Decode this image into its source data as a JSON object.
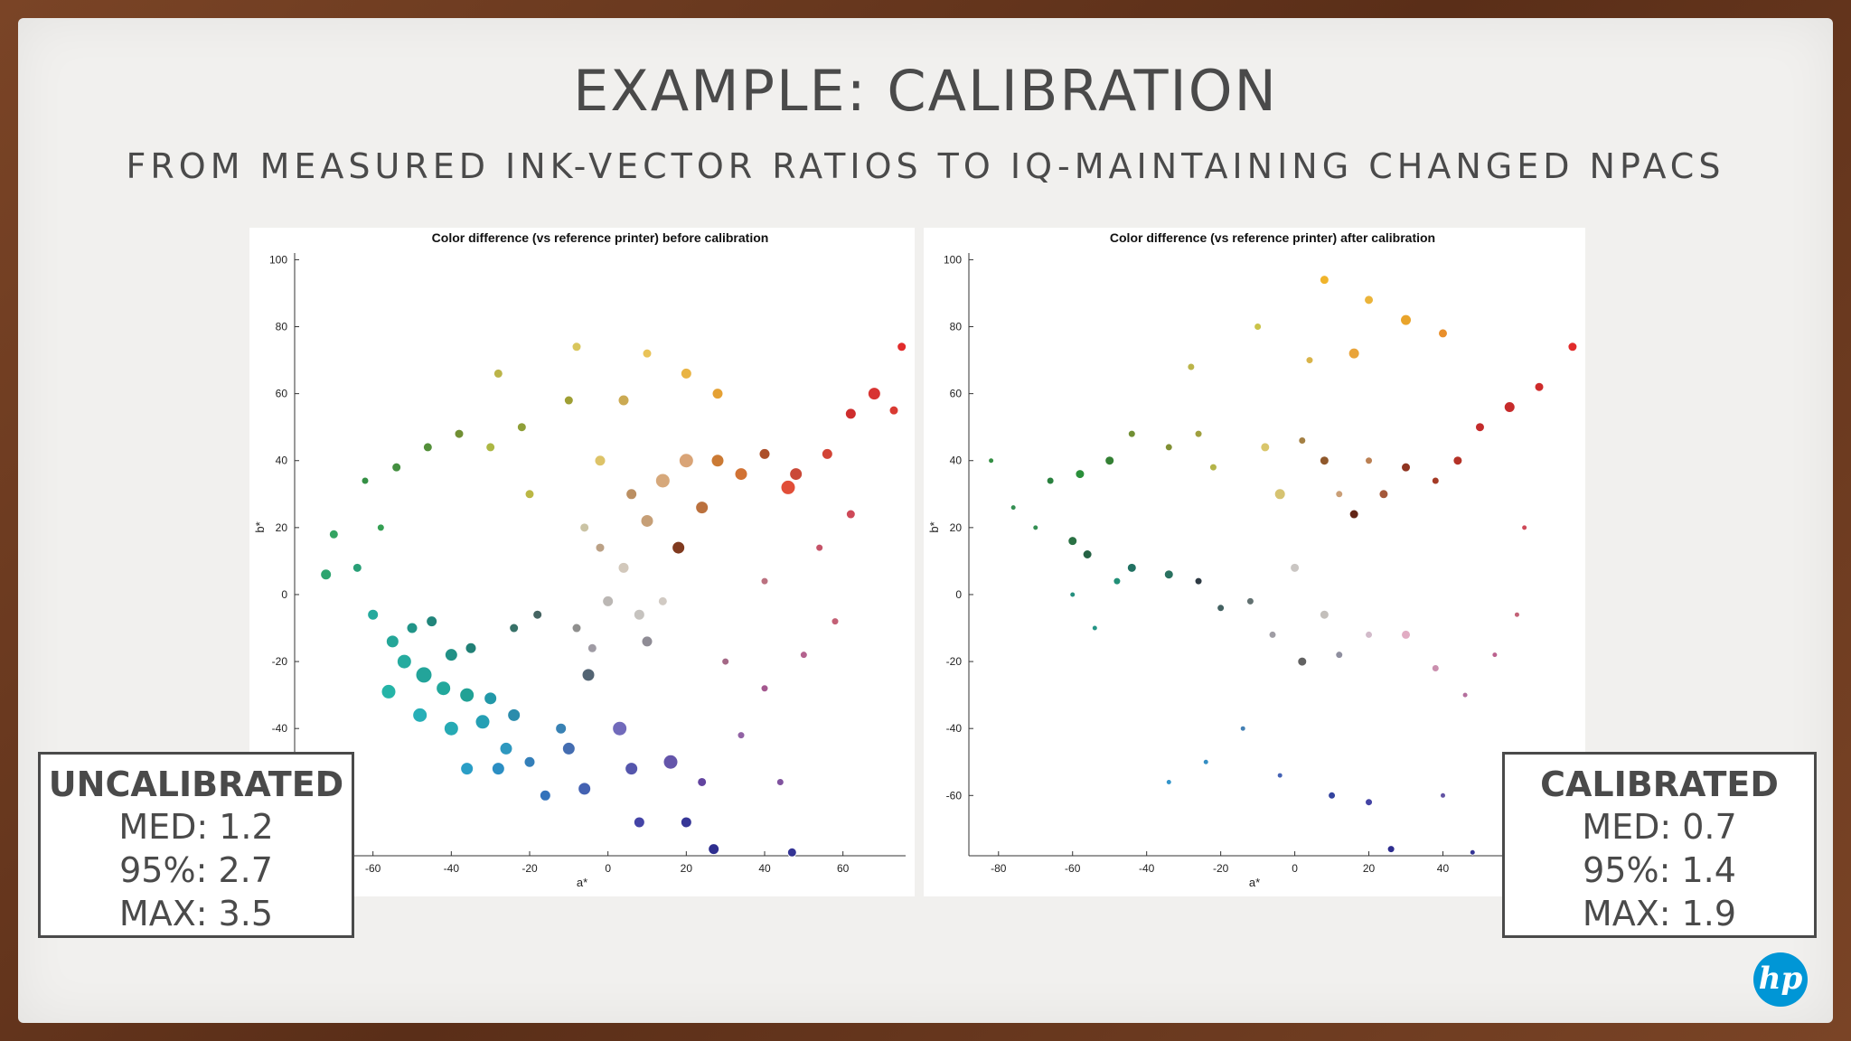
{
  "slide": {
    "title": "EXAMPLE: CALIBRATION",
    "subtitle": "FROM MEASURED INK-VECTOR RATIOS TO IQ-MAINTAINING CHANGED NPACS",
    "logo_text": "hp"
  },
  "stats": {
    "uncalibrated": {
      "label": "UNCALIBRATED",
      "med": "MED: 1.2",
      "p95": "95%: 2.7",
      "max": "MAX: 3.5"
    },
    "calibrated": {
      "label": "CALIBRATED",
      "med": "MED: 0.7",
      "p95": "95%: 1.4",
      "max": "MAX: 1.9"
    }
  },
  "chart_data": [
    {
      "type": "scatter",
      "title": "Color difference (vs reference printer) before calibration",
      "xlabel": "a*",
      "ylabel": "b*",
      "xlim": [
        -80,
        76
      ],
      "ylim": [
        -78,
        102
      ],
      "xticks": [
        -60,
        -40,
        -20,
        0,
        20,
        40,
        60
      ],
      "yticks": [
        100,
        80,
        60,
        40,
        20,
        0,
        -20,
        -40
      ],
      "grid": false,
      "points": [
        {
          "x": -60,
          "y": -6,
          "s": 6,
          "c": "#1aa698"
        },
        {
          "x": -55,
          "y": -14,
          "s": 7,
          "c": "#19a293"
        },
        {
          "x": -50,
          "y": -10,
          "s": 6,
          "c": "#168f82"
        },
        {
          "x": -45,
          "y": -8,
          "s": 6,
          "c": "#167f74"
        },
        {
          "x": -52,
          "y": -20,
          "s": 8,
          "c": "#1ba79a"
        },
        {
          "x": -47,
          "y": -24,
          "s": 9,
          "c": "#18a095"
        },
        {
          "x": -40,
          "y": -18,
          "s": 7,
          "c": "#178c80"
        },
        {
          "x": -35,
          "y": -16,
          "s": 6,
          "c": "#167a6f"
        },
        {
          "x": -56,
          "y": -29,
          "s": 8,
          "c": "#1ab0a3"
        },
        {
          "x": -42,
          "y": -28,
          "s": 8,
          "c": "#17a497"
        },
        {
          "x": -36,
          "y": -30,
          "s": 8,
          "c": "#169c90"
        },
        {
          "x": -30,
          "y": -31,
          "s": 7,
          "c": "#1793a4"
        },
        {
          "x": -48,
          "y": -36,
          "s": 8,
          "c": "#1cabb4"
        },
        {
          "x": -40,
          "y": -40,
          "s": 8,
          "c": "#1ba6b0"
        },
        {
          "x": -32,
          "y": -38,
          "s": 8,
          "c": "#1a9ab0"
        },
        {
          "x": -24,
          "y": -36,
          "s": 7,
          "c": "#2086a8"
        },
        {
          "x": -36,
          "y": -52,
          "s": 7,
          "c": "#1f99c4"
        },
        {
          "x": -28,
          "y": -52,
          "s": 7,
          "c": "#2088c0"
        },
        {
          "x": -20,
          "y": -50,
          "s": 6,
          "c": "#2a79b6"
        },
        {
          "x": -10,
          "y": -46,
          "s": 7,
          "c": "#3a66ad"
        },
        {
          "x": -16,
          "y": -60,
          "s": 6,
          "c": "#2a6cb8"
        },
        {
          "x": -6,
          "y": -58,
          "s": 7,
          "c": "#3b5aae"
        },
        {
          "x": 6,
          "y": -52,
          "s": 7,
          "c": "#4c4ea8"
        },
        {
          "x": 16,
          "y": -50,
          "s": 8,
          "c": "#5c4ca6"
        },
        {
          "x": 8,
          "y": -68,
          "s": 6,
          "c": "#3a3aa2"
        },
        {
          "x": 20,
          "y": -68,
          "s": 6,
          "c": "#2c2c92"
        },
        {
          "x": 27,
          "y": -76,
          "s": 6,
          "c": "#23238a"
        },
        {
          "x": 47,
          "y": -77,
          "s": 5,
          "c": "#2a2a90"
        },
        {
          "x": 3,
          "y": -40,
          "s": 8,
          "c": "#6a63b8"
        },
        {
          "x": -5,
          "y": -24,
          "s": 7,
          "c": "#4a5c6c"
        },
        {
          "x": -18,
          "y": -6,
          "s": 5,
          "c": "#3c5c5a"
        },
        {
          "x": -24,
          "y": -10,
          "s": 5,
          "c": "#2d6a60"
        },
        {
          "x": -8,
          "y": -10,
          "s": 5,
          "c": "#8a8a88"
        },
        {
          "x": 0,
          "y": -2,
          "s": 6,
          "c": "#b8b4b0"
        },
        {
          "x": 8,
          "y": -6,
          "s": 6,
          "c": "#c4c0bc"
        },
        {
          "x": -4,
          "y": -16,
          "s": 5,
          "c": "#9a96a0"
        },
        {
          "x": 10,
          "y": -14,
          "s": 6,
          "c": "#8a8690"
        },
        {
          "x": 14,
          "y": -2,
          "s": 5,
          "c": "#cfc8c0"
        },
        {
          "x": 4,
          "y": 8,
          "s": 6,
          "c": "#d0c6b8"
        },
        {
          "x": -2,
          "y": 14,
          "s": 5,
          "c": "#b89c80"
        },
        {
          "x": 6,
          "y": 30,
          "s": 6,
          "c": "#b88a5a"
        },
        {
          "x": 10,
          "y": 22,
          "s": 7,
          "c": "#c49a70"
        },
        {
          "x": 14,
          "y": 34,
          "s": 8,
          "c": "#d4a474"
        },
        {
          "x": 18,
          "y": 14,
          "s": 7,
          "c": "#7a3014"
        },
        {
          "x": 20,
          "y": 40,
          "s": 8,
          "c": "#d8a070"
        },
        {
          "x": 24,
          "y": 26,
          "s": 7,
          "c": "#b86a34"
        },
        {
          "x": 28,
          "y": 40,
          "s": 7,
          "c": "#c9732a"
        },
        {
          "x": 34,
          "y": 36,
          "s": 7,
          "c": "#cf6b2a"
        },
        {
          "x": 40,
          "y": 42,
          "s": 6,
          "c": "#a8461e"
        },
        {
          "x": 48,
          "y": 36,
          "s": 7,
          "c": "#c8402e"
        },
        {
          "x": 56,
          "y": 42,
          "s": 6,
          "c": "#d03a2c"
        },
        {
          "x": 62,
          "y": 54,
          "s": 6,
          "c": "#cc2222"
        },
        {
          "x": 68,
          "y": 60,
          "s": 7,
          "c": "#d62a28"
        },
        {
          "x": 73,
          "y": 55,
          "s": 5,
          "c": "#d83028"
        },
        {
          "x": 75,
          "y": 74,
          "s": 5,
          "c": "#e02020"
        },
        {
          "x": 46,
          "y": 32,
          "s": 8,
          "c": "#e0452e"
        },
        {
          "x": 28,
          "y": 60,
          "s": 6,
          "c": "#e49c2a"
        },
        {
          "x": 20,
          "y": 66,
          "s": 6,
          "c": "#e8b03a"
        },
        {
          "x": 10,
          "y": 72,
          "s": 5,
          "c": "#e8c050"
        },
        {
          "x": 4,
          "y": 58,
          "s": 6,
          "c": "#c9a64a"
        },
        {
          "x": -10,
          "y": 58,
          "s": 5,
          "c": "#9a9a2a"
        },
        {
          "x": -22,
          "y": 50,
          "s": 5,
          "c": "#8a9a2e"
        },
        {
          "x": -30,
          "y": 44,
          "s": 5,
          "c": "#a8b43a"
        },
        {
          "x": -38,
          "y": 48,
          "s": 5,
          "c": "#6a8a2a"
        },
        {
          "x": -46,
          "y": 44,
          "s": 5,
          "c": "#4a8a30"
        },
        {
          "x": -54,
          "y": 38,
          "s": 5,
          "c": "#3a8a36"
        },
        {
          "x": -62,
          "y": 34,
          "s": 4,
          "c": "#2a8a3a"
        },
        {
          "x": -58,
          "y": 20,
          "s": 4,
          "c": "#2a9a4a"
        },
        {
          "x": -70,
          "y": 18,
          "s": 5,
          "c": "#2aa05a"
        },
        {
          "x": -72,
          "y": 6,
          "s": 6,
          "c": "#22a068"
        },
        {
          "x": -64,
          "y": 8,
          "s": 5,
          "c": "#1e9a70"
        },
        {
          "x": -20,
          "y": 30,
          "s": 5,
          "c": "#b8b43a"
        },
        {
          "x": -28,
          "y": 66,
          "s": 5,
          "c": "#b8b040"
        },
        {
          "x": -8,
          "y": 74,
          "s": 5,
          "c": "#d8c454"
        },
        {
          "x": -2,
          "y": 40,
          "s": 6,
          "c": "#dcc060"
        },
        {
          "x": -6,
          "y": 20,
          "s": 5,
          "c": "#c8c0a0"
        },
        {
          "x": 30,
          "y": -20,
          "s": 4,
          "c": "#a06080"
        },
        {
          "x": 40,
          "y": -28,
          "s": 4,
          "c": "#a0508a"
        },
        {
          "x": 50,
          "y": -18,
          "s": 4,
          "c": "#b05a88"
        },
        {
          "x": 58,
          "y": -8,
          "s": 4,
          "c": "#c0586e"
        },
        {
          "x": 54,
          "y": 14,
          "s": 4,
          "c": "#c24a60"
        },
        {
          "x": 62,
          "y": 24,
          "s": 5,
          "c": "#cc4050"
        },
        {
          "x": 40,
          "y": 4,
          "s": 4,
          "c": "#b86a7a"
        },
        {
          "x": 34,
          "y": -42,
          "s": 4,
          "c": "#8c5aa0"
        },
        {
          "x": 44,
          "y": -56,
          "s": 4,
          "c": "#7a4a9a"
        },
        {
          "x": 24,
          "y": -56,
          "s": 5,
          "c": "#5a3a9a"
        },
        {
          "x": -12,
          "y": -40,
          "s": 6,
          "c": "#2f7cb0"
        },
        {
          "x": -26,
          "y": -46,
          "s": 7,
          "c": "#2393bc"
        }
      ]
    },
    {
      "type": "scatter",
      "title": "Color difference (vs reference printer) after calibration",
      "xlabel": "a*",
      "ylabel": "b*",
      "xlim": [
        -88,
        76
      ],
      "ylim": [
        -78,
        102
      ],
      "xticks": [
        -80,
        -60,
        -40,
        -20,
        0,
        20,
        40
      ],
      "yticks": [
        100,
        80,
        60,
        40,
        20,
        0,
        -20,
        -40,
        -60
      ],
      "grid": false,
      "points": [
        {
          "x": -60,
          "y": 0,
          "s": 3,
          "c": "#1a8a78"
        },
        {
          "x": -54,
          "y": -10,
          "s": 3,
          "c": "#1a9080"
        },
        {
          "x": -48,
          "y": 4,
          "s": 4,
          "c": "#178a70"
        },
        {
          "x": -44,
          "y": 8,
          "s": 5,
          "c": "#166a5a"
        },
        {
          "x": -34,
          "y": 6,
          "s": 5,
          "c": "#1f6a58"
        },
        {
          "x": -26,
          "y": 4,
          "s": 4,
          "c": "#23303a"
        },
        {
          "x": -60,
          "y": 16,
          "s": 5,
          "c": "#1f6a3a"
        },
        {
          "x": -56,
          "y": 12,
          "s": 5,
          "c": "#1a5a3a"
        },
        {
          "x": -70,
          "y": 20,
          "s": 3,
          "c": "#2a8a4a"
        },
        {
          "x": -76,
          "y": 26,
          "s": 3,
          "c": "#2a8a4a"
        },
        {
          "x": -82,
          "y": 40,
          "s": 3,
          "c": "#2a8a3a"
        },
        {
          "x": -66,
          "y": 34,
          "s": 4,
          "c": "#1e7a34"
        },
        {
          "x": -58,
          "y": 36,
          "s": 5,
          "c": "#1f8a30"
        },
        {
          "x": -50,
          "y": 40,
          "s": 5,
          "c": "#2a7a2a"
        },
        {
          "x": -44,
          "y": 48,
          "s": 4,
          "c": "#6a8a2a"
        },
        {
          "x": -34,
          "y": 44,
          "s": 4,
          "c": "#7a8a2a"
        },
        {
          "x": -26,
          "y": 48,
          "s": 4,
          "c": "#9a9a34"
        },
        {
          "x": -22,
          "y": 38,
          "s": 4,
          "c": "#b0b040"
        },
        {
          "x": -8,
          "y": 44,
          "s": 5,
          "c": "#d8c464"
        },
        {
          "x": -4,
          "y": 30,
          "s": 6,
          "c": "#d4c06a"
        },
        {
          "x": 2,
          "y": 46,
          "s": 4,
          "c": "#a07a3a"
        },
        {
          "x": 8,
          "y": 40,
          "s": 5,
          "c": "#8a5020"
        },
        {
          "x": 12,
          "y": 30,
          "s": 4,
          "c": "#c89a70"
        },
        {
          "x": 16,
          "y": 24,
          "s": 5,
          "c": "#5a1a0a"
        },
        {
          "x": 20,
          "y": 40,
          "s": 4,
          "c": "#b87a4a"
        },
        {
          "x": 24,
          "y": 30,
          "s": 5,
          "c": "#a05030"
        },
        {
          "x": 30,
          "y": 38,
          "s": 5,
          "c": "#8a2a16"
        },
        {
          "x": 38,
          "y": 34,
          "s": 4,
          "c": "#a0301a"
        },
        {
          "x": 44,
          "y": 40,
          "s": 5,
          "c": "#b0281c"
        },
        {
          "x": 50,
          "y": 50,
          "s": 5,
          "c": "#c02020"
        },
        {
          "x": 58,
          "y": 56,
          "s": 6,
          "c": "#c42020"
        },
        {
          "x": 66,
          "y": 62,
          "s": 5,
          "c": "#cc2020"
        },
        {
          "x": 75,
          "y": 74,
          "s": 5,
          "c": "#e02020"
        },
        {
          "x": 8,
          "y": 94,
          "s": 5,
          "c": "#f0b020"
        },
        {
          "x": 20,
          "y": 88,
          "s": 5,
          "c": "#eab030"
        },
        {
          "x": 30,
          "y": 82,
          "s": 6,
          "c": "#e8a020"
        },
        {
          "x": 40,
          "y": 78,
          "s": 5,
          "c": "#e88a20"
        },
        {
          "x": 16,
          "y": 72,
          "s": 6,
          "c": "#e8a030"
        },
        {
          "x": 4,
          "y": 70,
          "s": 4,
          "c": "#d8b040"
        },
        {
          "x": -10,
          "y": 80,
          "s": 4,
          "c": "#c8c040"
        },
        {
          "x": -28,
          "y": 68,
          "s": 4,
          "c": "#b8b040"
        },
        {
          "x": 0,
          "y": 8,
          "s": 5,
          "c": "#c8c4c0"
        },
        {
          "x": 8,
          "y": -6,
          "s": 5,
          "c": "#c0bcb8"
        },
        {
          "x": -6,
          "y": -12,
          "s": 4,
          "c": "#9a98a0"
        },
        {
          "x": 12,
          "y": -18,
          "s": 4,
          "c": "#8a8a9a"
        },
        {
          "x": 20,
          "y": -12,
          "s": 4,
          "c": "#d0b8c8"
        },
        {
          "x": 30,
          "y": -12,
          "s": 5,
          "c": "#e0a8c0"
        },
        {
          "x": 38,
          "y": -22,
          "s": 4,
          "c": "#c88aaa"
        },
        {
          "x": 46,
          "y": -30,
          "s": 3,
          "c": "#b06898"
        },
        {
          "x": 54,
          "y": -18,
          "s": 3,
          "c": "#b85a88"
        },
        {
          "x": 60,
          "y": -6,
          "s": 3,
          "c": "#c05a70"
        },
        {
          "x": 62,
          "y": 20,
          "s": 3,
          "c": "#cc4050"
        },
        {
          "x": 2,
          "y": -20,
          "s": 5,
          "c": "#5a5a5a"
        },
        {
          "x": -14,
          "y": -40,
          "s": 3,
          "c": "#3a7ab0"
        },
        {
          "x": -24,
          "y": -50,
          "s": 3,
          "c": "#2a88c0"
        },
        {
          "x": -34,
          "y": -56,
          "s": 3,
          "c": "#2a90c8"
        },
        {
          "x": -4,
          "y": -54,
          "s": 3,
          "c": "#3a5ab0"
        },
        {
          "x": 10,
          "y": -60,
          "s": 4,
          "c": "#2a3a9a"
        },
        {
          "x": 20,
          "y": -62,
          "s": 4,
          "c": "#3a3aa0"
        },
        {
          "x": 26,
          "y": -76,
          "s": 4,
          "c": "#23238a"
        },
        {
          "x": 48,
          "y": -77,
          "s": 3,
          "c": "#2a2a90"
        },
        {
          "x": 40,
          "y": -60,
          "s": 3,
          "c": "#5a4aa0"
        },
        {
          "x": -12,
          "y": -2,
          "s": 4,
          "c": "#5a6a6a"
        },
        {
          "x": -20,
          "y": -4,
          "s": 4,
          "c": "#3a5a5a"
        }
      ]
    }
  ]
}
